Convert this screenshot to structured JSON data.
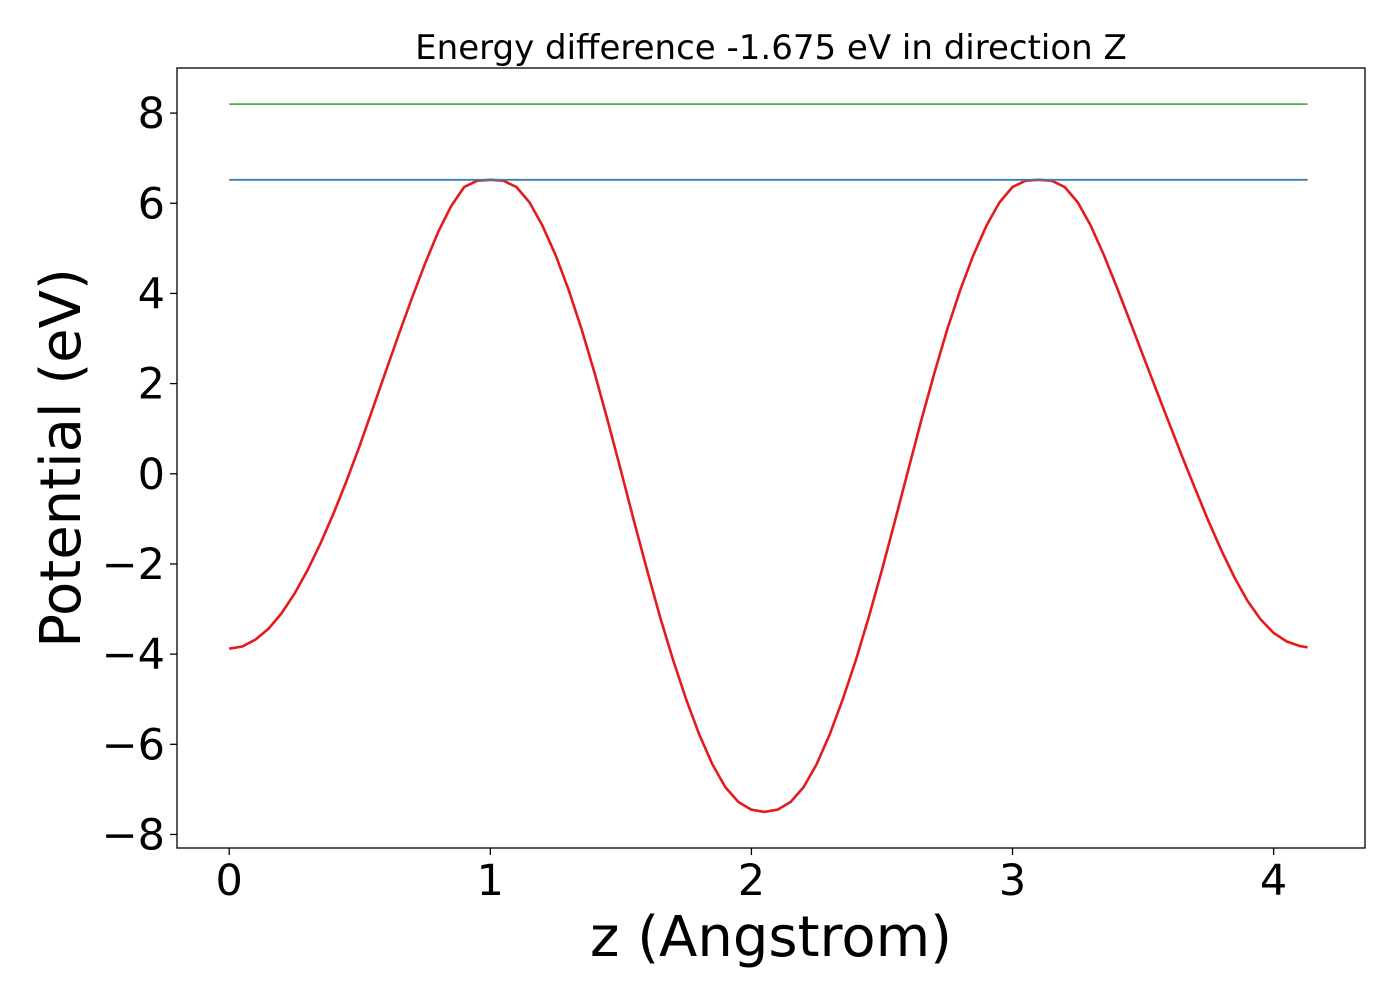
{
  "chart_data": {
    "type": "line",
    "title": "Energy difference -1.675 eV in direction Z",
    "xlabel": "z (Angstrom)",
    "ylabel": "Potential (eV)",
    "xlim": [
      -0.2,
      4.35
    ],
    "ylim": [
      -8.3,
      9.0
    ],
    "xticks": [
      0,
      1,
      2,
      3,
      4
    ],
    "xtick_labels": [
      "0",
      "1",
      "2",
      "3",
      "4"
    ],
    "yticks": [
      -8,
      -6,
      -4,
      -2,
      0,
      2,
      4,
      6,
      8
    ],
    "ytick_labels": [
      "−8",
      "−6",
      "−4",
      "−2",
      "0",
      "2",
      "4",
      "6",
      "8"
    ],
    "grid": false,
    "legend": "none",
    "series": [
      {
        "color": "#e41a1c",
        "x": [
          0.0,
          0.05,
          0.1,
          0.15,
          0.2,
          0.25,
          0.3,
          0.35,
          0.4,
          0.45,
          0.5,
          0.55,
          0.6,
          0.65,
          0.7,
          0.75,
          0.8,
          0.85,
          0.9,
          0.95,
          1.0,
          1.05,
          1.1,
          1.15,
          1.2,
          1.25,
          1.3,
          1.35,
          1.4,
          1.45,
          1.5,
          1.55,
          1.6,
          1.65,
          1.7,
          1.75,
          1.8,
          1.85,
          1.9,
          1.95,
          2.0,
          2.05,
          2.1,
          2.15,
          2.2,
          2.25,
          2.3,
          2.35,
          2.4,
          2.45,
          2.5,
          2.55,
          2.6,
          2.65,
          2.7,
          2.75,
          2.8,
          2.85,
          2.9,
          2.95,
          3.0,
          3.05,
          3.1,
          3.15,
          3.2,
          3.25,
          3.3,
          3.35,
          3.4,
          3.45,
          3.5,
          3.55,
          3.6,
          3.65,
          3.7,
          3.75,
          3.8,
          3.85,
          3.9,
          3.95,
          4.0,
          4.05,
          4.1,
          4.13
        ],
        "y": [
          -3.88,
          -3.83,
          -3.68,
          -3.44,
          -3.1,
          -2.66,
          -2.14,
          -1.54,
          -0.87,
          -0.15,
          0.63,
          1.45,
          2.28,
          3.1,
          3.9,
          4.66,
          5.36,
          5.94,
          6.36,
          6.5,
          6.52,
          6.5,
          6.36,
          6.02,
          5.5,
          4.85,
          4.08,
          3.2,
          2.22,
          1.17,
          0.07,
          -1.04,
          -2.13,
          -3.17,
          -4.13,
          -5.0,
          -5.78,
          -6.44,
          -6.95,
          -7.28,
          -7.45,
          -7.5,
          -7.45,
          -7.28,
          -6.95,
          -6.44,
          -5.78,
          -5.0,
          -4.13,
          -3.17,
          -2.13,
          -1.04,
          0.07,
          1.17,
          2.22,
          3.2,
          4.08,
          4.85,
          5.5,
          6.02,
          6.36,
          6.5,
          6.52,
          6.5,
          6.36,
          6.02,
          5.5,
          4.85,
          4.13,
          3.38,
          2.62,
          1.87,
          1.12,
          0.38,
          -0.34,
          -1.04,
          -1.7,
          -2.3,
          -2.82,
          -3.23,
          -3.53,
          -3.72,
          -3.82,
          -3.85
        ]
      },
      {
        "color": "#377eb8",
        "x": [
          0.0,
          4.13
        ],
        "y": [
          6.52,
          6.52
        ]
      },
      {
        "color": "#4daf4a",
        "x": [
          0.0,
          4.13
        ],
        "y": [
          8.2,
          8.2
        ]
      }
    ]
  }
}
